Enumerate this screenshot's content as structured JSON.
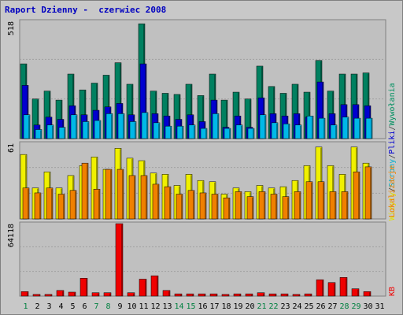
{
  "title": "Raport Dzienny -  czerwiec 2008",
  "chart_data": [
    {
      "type": "bar",
      "panel": "visits",
      "ymax_label": "518",
      "ylim": [
        0,
        518
      ],
      "categories": [
        "1",
        "2",
        "3",
        "4",
        "5",
        "6",
        "7",
        "8",
        "9",
        "10",
        "11",
        "12",
        "13",
        "14",
        "15",
        "16",
        "17",
        "18",
        "19",
        "20",
        "21",
        "22",
        "23",
        "24",
        "25",
        "26",
        "27",
        "28",
        "29",
        "30",
        "31"
      ],
      "highlight_days": [
        "1",
        "7",
        "8",
        "14",
        "15",
        "21",
        "22",
        "28",
        "29"
      ],
      "legend": [
        "Wywołania",
        "/",
        "Pliki",
        "/",
        "Strony",
        "/",
        "Wizyty"
      ],
      "legend_colors": [
        "#009060",
        "#404040",
        "#0000d0",
        "#404040",
        "#00b0d0",
        "#404040",
        "#e0e000"
      ],
      "series": [
        {
          "name": "Wywołania",
          "color": "#008060",
          "values": [
            330,
            175,
            210,
            170,
            285,
            215,
            245,
            280,
            335,
            240,
            507,
            210,
            200,
            195,
            240,
            190,
            285,
            170,
            205,
            175,
            320,
            230,
            200,
            240,
            205,
            345,
            210,
            285,
            285,
            290,
            0
          ]
        },
        {
          "name": "Pliki",
          "color": "#0000d0",
          "values": [
            235,
            60,
            95,
            85,
            145,
            105,
            125,
            140,
            155,
            105,
            330,
            110,
            100,
            85,
            105,
            75,
            170,
            50,
            100,
            50,
            180,
            110,
            100,
            110,
            95,
            250,
            110,
            150,
            150,
            145,
            0
          ]
        },
        {
          "name": "Strony",
          "color": "#00b8e8",
          "values": [
            105,
            40,
            60,
            50,
            105,
            75,
            80,
            110,
            110,
            75,
            115,
            70,
            55,
            55,
            60,
            45,
            110,
            45,
            60,
            45,
            105,
            70,
            65,
            60,
            100,
            90,
            60,
            95,
            90,
            90,
            0
          ]
        }
      ]
    },
    {
      "type": "bar",
      "panel": "visits-sites",
      "ymax_label": "61",
      "ylim": [
        0,
        61
      ],
      "series": [
        {
          "name": "Wizyty",
          "color": "#f0f000",
          "values": [
            52,
            25,
            38,
            25,
            35,
            43,
            50,
            40,
            57,
            49,
            47,
            37,
            36,
            27,
            36,
            31,
            30,
            20,
            25,
            22,
            27,
            25,
            26,
            31,
            43,
            58,
            43,
            36,
            58,
            45,
            0
          ]
        },
        {
          "name": "Lokalizacje",
          "color": "#f08000",
          "values": [
            25,
            21,
            25,
            20,
            23,
            45,
            24,
            40,
            40,
            35,
            35,
            28,
            26,
            20,
            23,
            21,
            20,
            17,
            22,
            18,
            22,
            20,
            18,
            22,
            30,
            30,
            22,
            22,
            38,
            42,
            0
          ]
        }
      ]
    },
    {
      "type": "bar",
      "panel": "kb",
      "ymax_label": "64118",
      "ylim": [
        0,
        64118
      ],
      "series": [
        {
          "name": "KB",
          "color": "#f00000",
          "values": [
            4000,
            1500,
            1500,
            5000,
            3500,
            15800,
            3000,
            3000,
            64118,
            3000,
            15000,
            18000,
            5000,
            2000,
            2000,
            2000,
            2000,
            1500,
            2000,
            2000,
            3000,
            2000,
            2000,
            1500,
            2000,
            14500,
            12000,
            16500,
            6500,
            4000,
            0
          ]
        }
      ]
    }
  ]
}
